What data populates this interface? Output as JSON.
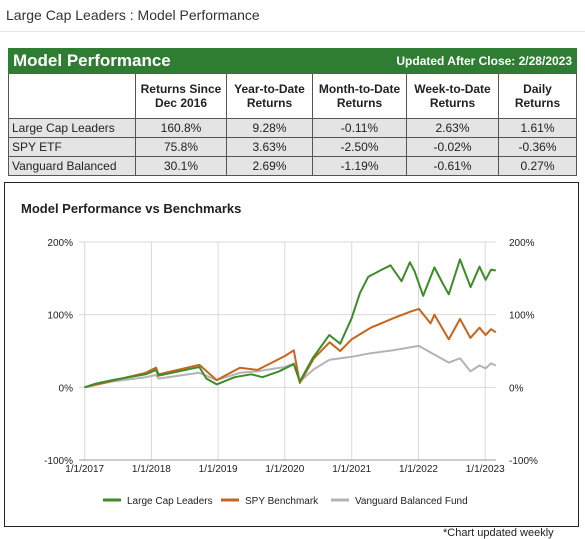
{
  "page": {
    "title": "Large Cap Leaders : Model Performance"
  },
  "table": {
    "title": "Model Performance",
    "updated": "Updated After Close:  2/28/2023",
    "headers": [
      "",
      "Returns Since Dec 2016",
      "Year-to-Date Returns",
      "Month-to-Date Returns",
      "Week-to-Date Returns",
      "Daily Returns"
    ],
    "rows": [
      {
        "name": "Large Cap Leaders",
        "since_dec_2016": "160.8%",
        "ytd": "9.28%",
        "mtd": "-0.11%",
        "wtd": "2.63%",
        "daily": "1.61%"
      },
      {
        "name": "SPY ETF",
        "since_dec_2016": "75.8%",
        "ytd": "3.63%",
        "mtd": "-2.50%",
        "wtd": "-0.02%",
        "daily": "-0.36%"
      },
      {
        "name": "Vanguard Balanced",
        "since_dec_2016": "30.1%",
        "ytd": "2.69%",
        "mtd": "-1.19%",
        "wtd": "-0.61%",
        "daily": "0.27%"
      }
    ]
  },
  "chart_data": {
    "type": "line",
    "title": "Model Performance vs Benchmarks",
    "xlabel": "",
    "ylabel": "",
    "x_ticks": [
      "1/1/2017",
      "1/1/2018",
      "1/1/2019",
      "1/1/2020",
      "1/1/2021",
      "1/1/2022",
      "1/1/2023"
    ],
    "y_ticks_left": [
      "200%",
      "100%",
      "0%",
      "-100%"
    ],
    "y_ticks_right": [
      "200%",
      "100%",
      "0%",
      "-100%"
    ],
    "ylim": [
      -100,
      200
    ],
    "xlim": [
      "2016-12-01",
      "2023-03-01"
    ],
    "grid": true,
    "legend_position": "bottom",
    "series": [
      {
        "name": "Large Cap Leaders",
        "color": "#3d8c2a",
        "x": [
          "2016-12-31",
          "2017-03-01",
          "2017-06-01",
          "2017-09-01",
          "2017-12-01",
          "2018-01-26",
          "2018-02-09",
          "2018-06-01",
          "2018-09-20",
          "2018-10-29",
          "2018-12-24",
          "2019-04-01",
          "2019-07-01",
          "2019-09-01",
          "2019-12-01",
          "2020-02-19",
          "2020-03-23",
          "2020-06-01",
          "2020-08-31",
          "2020-10-30",
          "2020-12-31",
          "2021-02-15",
          "2021-04-01",
          "2021-06-15",
          "2021-08-01",
          "2021-09-30",
          "2021-11-15",
          "2021-12-10",
          "2022-01-27",
          "2022-03-29",
          "2022-05-20",
          "2022-06-16",
          "2022-08-16",
          "2022-10-13",
          "2022-12-01",
          "2023-01-03",
          "2023-02-02",
          "2023-02-28"
        ],
        "values": [
          0,
          5,
          10,
          14,
          18,
          24,
          16,
          22,
          28,
          12,
          4,
          14,
          18,
          14,
          22,
          32,
          8,
          40,
          72,
          60,
          95,
          130,
          152,
          162,
          168,
          146,
          172,
          160,
          126,
          165,
          140,
          128,
          176,
          138,
          166,
          148,
          162,
          160.8
        ]
      },
      {
        "name": "SPY Benchmark",
        "color": "#c8641c",
        "x": [
          "2016-12-31",
          "2017-06-01",
          "2017-12-01",
          "2018-01-26",
          "2018-02-09",
          "2018-09-20",
          "2018-12-24",
          "2019-04-30",
          "2019-08-05",
          "2019-12-31",
          "2020-02-19",
          "2020-03-23",
          "2020-06-08",
          "2020-09-02",
          "2020-10-30",
          "2020-12-31",
          "2021-04-15",
          "2021-08-15",
          "2021-11-15",
          "2022-01-03",
          "2022-03-08",
          "2022-03-29",
          "2022-06-16",
          "2022-08-16",
          "2022-10-12",
          "2022-12-01",
          "2023-01-03",
          "2023-02-02",
          "2023-02-28"
        ],
        "values": [
          0,
          9,
          20,
          27,
          18,
          31,
          10,
          27,
          24,
          43,
          51,
          6,
          40,
          62,
          50,
          66,
          82,
          95,
          104,
          108,
          88,
          100,
          66,
          94,
          68,
          82,
          72,
          80,
          75.8
        ]
      },
      {
        "name": "Vanguard Balanced Fund",
        "color": "#b3b3b3",
        "x": [
          "2016-12-31",
          "2017-06-01",
          "2017-12-01",
          "2018-01-26",
          "2018-02-09",
          "2018-09-20",
          "2018-12-24",
          "2019-04-30",
          "2019-08-05",
          "2019-12-31",
          "2020-02-19",
          "2020-03-23",
          "2020-06-08",
          "2020-09-02",
          "2020-12-31",
          "2021-04-15",
          "2021-08-15",
          "2021-11-15",
          "2022-01-03",
          "2022-03-08",
          "2022-06-16",
          "2022-08-16",
          "2022-10-12",
          "2022-12-01",
          "2023-01-03",
          "2023-02-02",
          "2023-02-28"
        ],
        "values": [
          0,
          8,
          14,
          17,
          12,
          20,
          10,
          20,
          22,
          28,
          33,
          8,
          25,
          38,
          42,
          47,
          51,
          55,
          57,
          48,
          34,
          40,
          22,
          30,
          26,
          33,
          30.1
        ]
      }
    ]
  },
  "footnote": "*Chart updated weekly"
}
